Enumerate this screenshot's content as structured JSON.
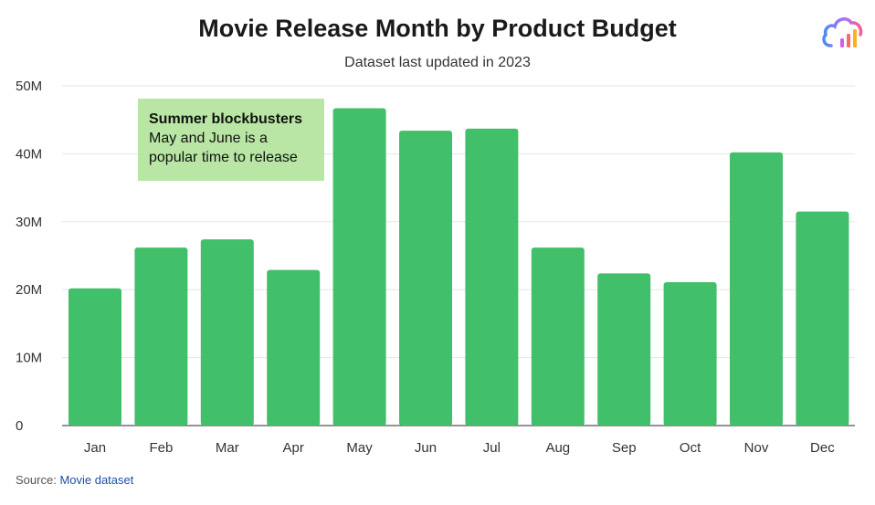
{
  "chart_data": {
    "type": "bar",
    "title": "Movie Release Month by Product Budget",
    "subtitle": "Dataset last updated in 2023",
    "categories": [
      "Jan",
      "Feb",
      "Mar",
      "Apr",
      "May",
      "Jun",
      "Jul",
      "Aug",
      "Sep",
      "Oct",
      "Nov",
      "Dec"
    ],
    "values": [
      20.2,
      26.2,
      27.4,
      22.9,
      46.7,
      43.4,
      43.7,
      26.2,
      22.4,
      21.1,
      40.2,
      31.5
    ],
    "value_unit": "M",
    "ylim": [
      0,
      50
    ],
    "yticks": [
      0,
      10,
      20,
      30,
      40,
      50
    ],
    "ytick_labels": [
      "0",
      "10M",
      "20M",
      "30M",
      "40M",
      "50M"
    ],
    "xlabel": "",
    "ylabel": "",
    "bar_color": "#41bf6b",
    "grid": true,
    "annotation": {
      "heading": "Summer blockbusters",
      "line1": "May and June is a",
      "line2": "popular time to release",
      "background": "#b9e6a4"
    }
  },
  "source": {
    "prefix": "Source:",
    "link_text": "Movie dataset"
  },
  "logo": {
    "icon": "cloud-chart-icon"
  }
}
